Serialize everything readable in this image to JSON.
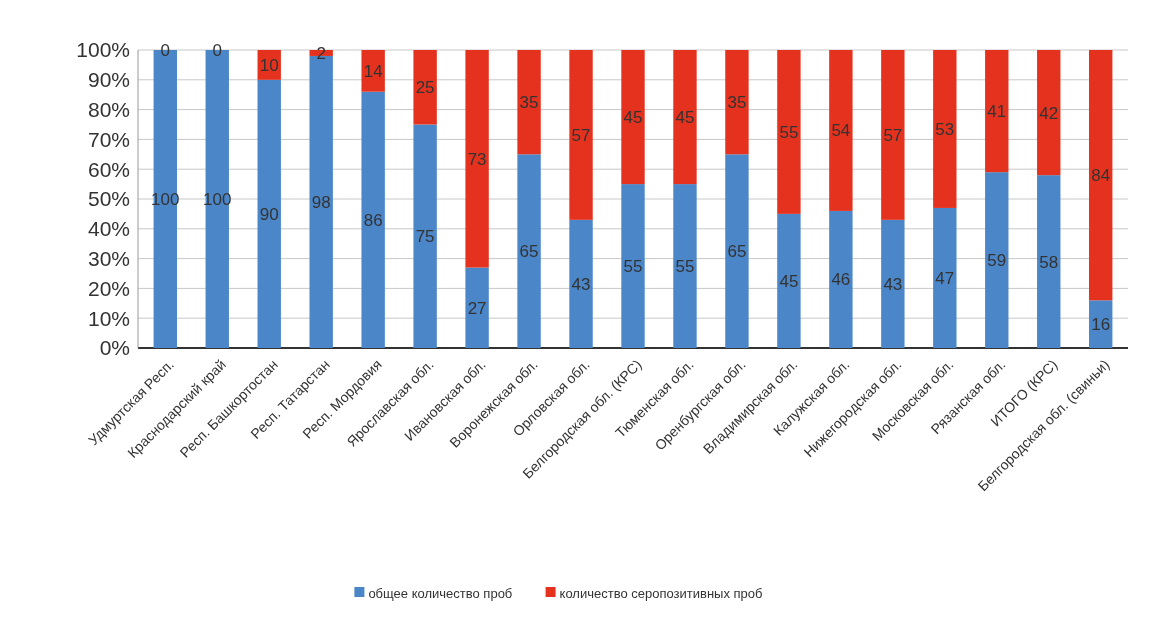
{
  "chart_data": {
    "type": "bar",
    "stacked": true,
    "categories": [
      "Удмуртская Респ.",
      "Краснодарский край",
      "Респ. Башкортостан",
      "Респ. Татарстан",
      "Респ. Мордовия",
      "Ярославская обл.",
      "Ивановская обл.",
      "Воронежская обл.",
      "Орловская обл.",
      "Белгородская обл. (КРС)",
      "Тюменская обл.",
      "Оренбургская обл.",
      "Владимирская обл.",
      "Калужская обл.",
      "Нижегородская обл.",
      "Московская обл.",
      "Рязанская обл.",
      "ИТОГО (КРС)",
      "Белгородская обл. (свиньи)"
    ],
    "series": [
      {
        "name": "общее количество проб",
        "color": "#4a86c8",
        "values": [
          100,
          100,
          90,
          98,
          86,
          75,
          27,
          65,
          43,
          55,
          55,
          65,
          45,
          46,
          43,
          47,
          59,
          58,
          16
        ]
      },
      {
        "name": "количество серопозитивных проб",
        "color": "#e5321e",
        "values": [
          0,
          0,
          10,
          2,
          14,
          25,
          73,
          35,
          57,
          45,
          45,
          35,
          55,
          54,
          57,
          53,
          41,
          42,
          84
        ]
      }
    ],
    "ylim": [
      0,
      100
    ],
    "yticks": [
      {
        "value": 0,
        "label": "0%"
      },
      {
        "value": 10,
        "label": "10%"
      },
      {
        "value": 20,
        "label": "20%"
      },
      {
        "value": 30,
        "label": "30%"
      },
      {
        "value": 40,
        "label": "40%"
      },
      {
        "value": 50,
        "label": "50%"
      },
      {
        "value": 60,
        "label": "60%"
      },
      {
        "value": 70,
        "label": "70%"
      },
      {
        "value": 80,
        "label": "80%"
      },
      {
        "value": 90,
        "label": "90%"
      },
      {
        "value": 100,
        "label": "100%"
      }
    ],
    "grid": "y",
    "data_labels": true,
    "legend": "bottom"
  }
}
